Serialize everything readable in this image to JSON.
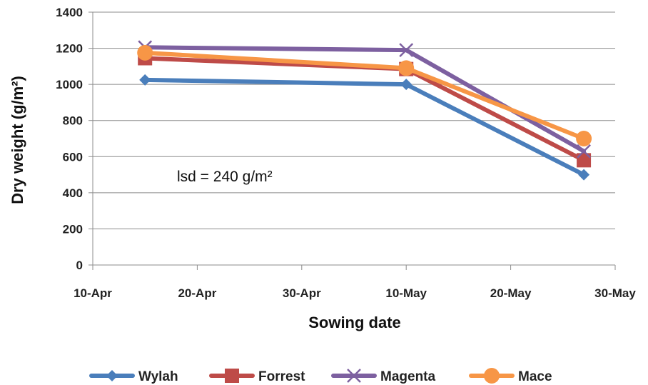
{
  "chart_data": {
    "type": "line",
    "xlabel": "Sowing date",
    "ylabel": "Dry weight (g/m²)",
    "ylim": [
      0,
      1400
    ],
    "yticks": [
      "0",
      "200",
      "400",
      "600",
      "800",
      "1000",
      "1200",
      "1400"
    ],
    "xticks": [
      "10-Apr",
      "20-Apr",
      "30-Apr",
      "10-May",
      "20-May",
      "30-May"
    ],
    "x": [
      "15-Apr",
      "10-May",
      "27-May"
    ],
    "annotation": "lsd = 240 g/m²",
    "grid": true,
    "legend_position": "bottom",
    "series": [
      {
        "name": "Wylah",
        "color": "#4a7ebb",
        "marker": "diamond",
        "values": [
          1025,
          1000,
          500
        ]
      },
      {
        "name": "Forrest",
        "color": "#be4b48",
        "marker": "square",
        "values": [
          1145,
          1085,
          580
        ]
      },
      {
        "name": "Magenta",
        "color": "#7d60a0",
        "marker": "x",
        "values": [
          1205,
          1190,
          630
        ]
      },
      {
        "name": "Mace",
        "color": "#f79646",
        "marker": "circle",
        "values": [
          1175,
          1090,
          700
        ]
      }
    ]
  }
}
